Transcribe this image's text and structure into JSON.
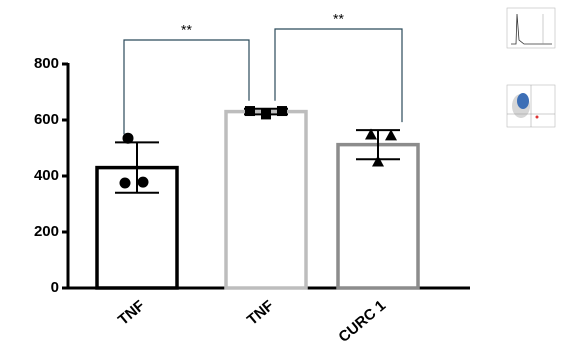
{
  "chart_data": {
    "type": "bar",
    "categories": [
      "TNF",
      "TNF",
      "CURC 1"
    ],
    "values": [
      430,
      630,
      512
    ],
    "errors": [
      90,
      10,
      52
    ],
    "colors": [
      "#000000",
      "#bdbdbd",
      "#8c8c8c"
    ],
    "points": [
      [
        535,
        375,
        378
      ],
      [
        632,
        620,
        632
      ],
      [
        548,
        545,
        452
      ]
    ],
    "markers": [
      "circle",
      "square",
      "triangle"
    ],
    "comparisons": [
      {
        "from": 0,
        "to": 1,
        "label": "**"
      },
      {
        "from": 1,
        "to": 2,
        "label": "**"
      }
    ],
    "ylim": [
      0,
      800
    ],
    "yticks": [
      0,
      200,
      400,
      600,
      800
    ]
  }
}
